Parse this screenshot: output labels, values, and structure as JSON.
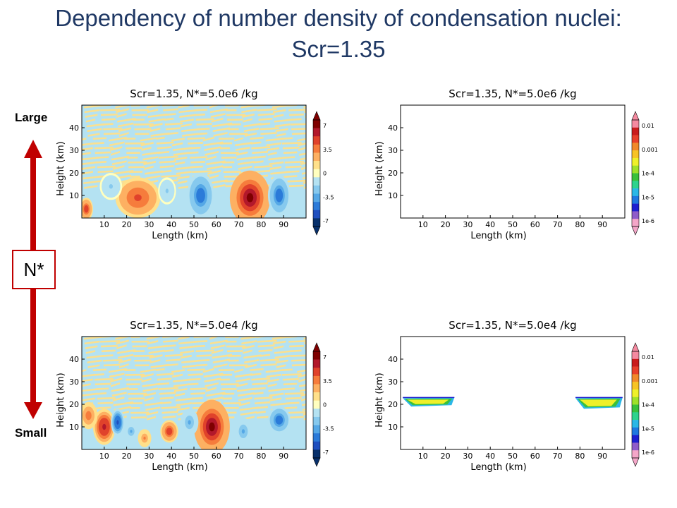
{
  "slide": {
    "title_line1": "Dependency of number density of condensation nuclei:",
    "title_line2": "Scr=1.35"
  },
  "side": {
    "large_label": "Large",
    "small_label": "Small",
    "nstar_label": "N*",
    "arrow_color": "#c00000"
  },
  "chart_data": [
    {
      "id": "top-left",
      "type": "heatmap",
      "title": "Scr=1.35, N*=5.0e6 /kg",
      "xlabel": "Length  (km)",
      "ylabel": "Height  (km)",
      "xticks": [
        10,
        20,
        30,
        40,
        50,
        60,
        70,
        80,
        90
      ],
      "yticks": [
        10,
        20,
        30,
        40
      ],
      "xlim": [
        0,
        100
      ],
      "ylim": [
        0,
        50
      ],
      "colorbar": {
        "ticks": [
          "7",
          "3.5",
          "0",
          "-3.5",
          "-7"
        ],
        "scale": "diverging"
      },
      "features": [
        {
          "kind": "positive",
          "x": 25,
          "y": 9,
          "rx": 10,
          "ry": 9,
          "peak": 4.5
        },
        {
          "kind": "positive",
          "x": 75,
          "y": 9,
          "rx": 9,
          "ry": 12,
          "peak": 7
        },
        {
          "kind": "positive",
          "x": 2,
          "y": 4,
          "rx": 3,
          "ry": 5,
          "peak": 5
        },
        {
          "kind": "negative",
          "x": 53,
          "y": 10,
          "rx": 6,
          "ry": 10,
          "peak": -5
        },
        {
          "kind": "negative",
          "x": 88,
          "y": 10,
          "rx": 5,
          "ry": 9,
          "peak": -5
        },
        {
          "kind": "negative",
          "x": 13,
          "y": 14,
          "rx": 5,
          "ry": 6,
          "peak": -2
        },
        {
          "kind": "negative",
          "x": 38,
          "y": 12,
          "rx": 4,
          "ry": 6,
          "peak": -2
        }
      ]
    },
    {
      "id": "top-right",
      "type": "heatmap",
      "title": "Scr=1.35, N*=5.0e6 /kg",
      "xlabel": "Length  (km)",
      "ylabel": "Height  (km)",
      "xticks": [
        10,
        20,
        30,
        40,
        50,
        60,
        70,
        80,
        90
      ],
      "yticks": [
        10,
        20,
        30,
        40
      ],
      "xlim": [
        0,
        100
      ],
      "ylim": [
        0,
        50
      ],
      "colorbar": {
        "ticks": [
          "0.01",
          "0.001",
          "1e-4",
          "1e-5",
          "1e-6"
        ],
        "scale": "log"
      },
      "features": []
    },
    {
      "id": "bottom-left",
      "type": "heatmap",
      "title": "Scr=1.35, N*=5.0e4 /kg",
      "xlabel": "Length  (km)",
      "ylabel": "Height  (km)",
      "xticks": [
        10,
        20,
        30,
        40,
        50,
        60,
        70,
        80,
        90
      ],
      "yticks": [
        10,
        20,
        30,
        40
      ],
      "xlim": [
        0,
        100
      ],
      "ylim": [
        0,
        50
      ],
      "colorbar": {
        "ticks": [
          "7",
          "3.5",
          "0",
          "-3.5",
          "-7"
        ],
        "scale": "diverging"
      },
      "features": [
        {
          "kind": "positive",
          "x": 10,
          "y": 10,
          "rx": 5,
          "ry": 8,
          "peak": 6
        },
        {
          "kind": "positive",
          "x": 58,
          "y": 10,
          "rx": 8,
          "ry": 12,
          "peak": 7
        },
        {
          "kind": "positive",
          "x": 39,
          "y": 8,
          "rx": 4,
          "ry": 5,
          "peak": 5
        },
        {
          "kind": "positive",
          "x": 3,
          "y": 15,
          "rx": 4,
          "ry": 6,
          "peak": 4
        },
        {
          "kind": "positive",
          "x": 28,
          "y": 5,
          "rx": 3,
          "ry": 4,
          "peak": 3
        },
        {
          "kind": "negative",
          "x": 16,
          "y": 12,
          "rx": 3,
          "ry": 6,
          "peak": -6
        },
        {
          "kind": "negative",
          "x": 88,
          "y": 13,
          "rx": 5,
          "ry": 6,
          "peak": -5
        },
        {
          "kind": "negative",
          "x": 72,
          "y": 8,
          "rx": 4,
          "ry": 6,
          "peak": -3
        },
        {
          "kind": "negative",
          "x": 48,
          "y": 12,
          "rx": 4,
          "ry": 6,
          "peak": -3
        },
        {
          "kind": "negative",
          "x": 22,
          "y": 8,
          "rx": 3,
          "ry": 4,
          "peak": -3
        }
      ]
    },
    {
      "id": "bottom-right",
      "type": "heatmap",
      "title": "Scr=1.35, N*=5.0e4 /kg",
      "xlabel": "Length  (km)",
      "ylabel": "Height  (km)",
      "xticks": [
        10,
        20,
        30,
        40,
        50,
        60,
        70,
        80,
        90
      ],
      "yticks": [
        10,
        20,
        30,
        40
      ],
      "xlim": [
        0,
        100
      ],
      "ylim": [
        0,
        50
      ],
      "colorbar": {
        "ticks": [
          "0.01",
          "0.001",
          "1e-4",
          "1e-5",
          "1e-6"
        ],
        "scale": "log"
      },
      "features": [
        {
          "kind": "cloud",
          "x": [
            1,
            24
          ],
          "y": [
            19,
            23
          ]
        },
        {
          "kind": "cloud",
          "x": [
            78,
            99
          ],
          "y": [
            18,
            23
          ]
        }
      ]
    }
  ]
}
